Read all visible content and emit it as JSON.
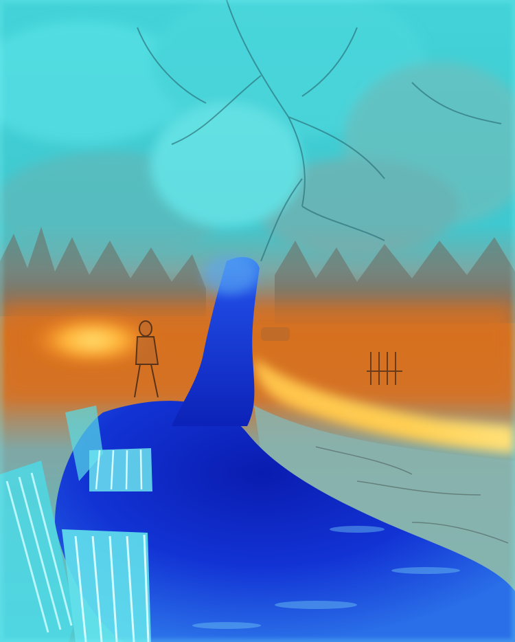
{
  "image": {
    "kind": "photograph",
    "filter": "thermal-false-color",
    "palette": {
      "sky_cyan": "#46d6db",
      "mist_teal": "#6fb6b4",
      "haze_gray": "#8a9e9c",
      "warm_orange": "#f07a1a",
      "hot_yellow": "#ffd34a",
      "cold_blue": "#1f3fe0",
      "deep_blue": "#0a1fb0",
      "bench_cyan": "#5fe3ee"
    }
  }
}
